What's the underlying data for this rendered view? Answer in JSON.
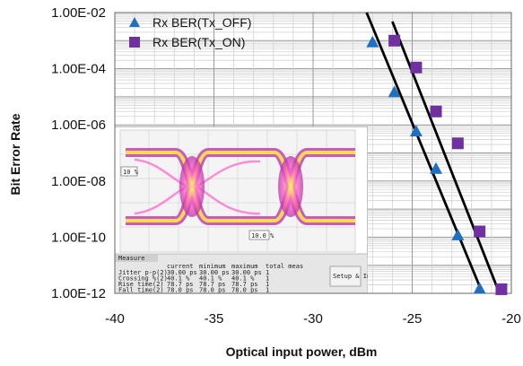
{
  "chart_data": {
    "type": "scatter",
    "title": "",
    "xlabel": "Optical input power, dBm",
    "ylabel": "Bit Error Rate",
    "x_ticks": [
      "-40",
      "-35",
      "-30",
      "-25",
      "-20"
    ],
    "y_ticks": [
      "1.00E-02",
      "1.00E-04",
      "1.00E-06",
      "1.00E-08",
      "1.00E-10",
      "1.00E-12"
    ],
    "xlim": [
      -40,
      -20
    ],
    "ylim": [
      1e-12,
      0.01
    ],
    "y_scale": "log",
    "grid": true,
    "legend_position": "top-left",
    "series": [
      {
        "name": "Rx BER(Tx_OFF)",
        "marker": "triangle",
        "color": "#1f6fc0",
        "points": [
          {
            "x": -27.0,
            "y": 0.0009
          },
          {
            "x": -25.9,
            "y": 1.5e-05
          },
          {
            "x": -24.8,
            "y": 6e-07
          },
          {
            "x": -23.8,
            "y": 2.8e-08
          },
          {
            "x": -22.7,
            "y": 1.2e-10
          },
          {
            "x": -21.6,
            "y": 1.5e-12
          }
        ],
        "fit_line": {
          "x": [
            -27.3,
            -21.5
          ],
          "y": [
            0.01,
            1.2e-12
          ]
        }
      },
      {
        "name": "Rx BER(Tx_ON)",
        "marker": "square",
        "color": "#7030a0",
        "points": [
          {
            "x": -25.9,
            "y": 0.001
          },
          {
            "x": -24.8,
            "y": 0.00011
          },
          {
            "x": -23.8,
            "y": 3e-06
          },
          {
            "x": -22.7,
            "y": 2.2e-07
          },
          {
            "x": -21.6,
            "y": 1.6e-10
          },
          {
            "x": -20.5,
            "y": 1.4e-12
          }
        ],
        "fit_line": {
          "x": [
            -26.0,
            -20.6
          ],
          "y": [
            0.0048,
            1e-12
          ]
        }
      }
    ],
    "inset": {
      "type": "eye-diagram",
      "markers": [
        "10 %",
        "10.0 %"
      ],
      "panel_title": "Measure",
      "button_label": "Setup & Info",
      "columns": [
        "current",
        "minimum",
        "maximum",
        "total meas"
      ],
      "rows": [
        {
          "label": "Jitter p-p(2)",
          "values": [
            "30.00 ps",
            "30.00 ps",
            "30.00 ps",
            "1"
          ]
        },
        {
          "label": "Crossing %(2)",
          "values": [
            "40.1 %",
            "40.1 %",
            "40.1 %",
            "1"
          ]
        },
        {
          "label": "Rise time(2)",
          "values": [
            "78.7 ps",
            "78.7 ps",
            "78.7 ps",
            "1"
          ]
        },
        {
          "label": "Fall time(2)",
          "values": [
            "78.0 ps",
            "78.0 ps",
            "78.0 ps",
            "1"
          ]
        }
      ]
    }
  }
}
